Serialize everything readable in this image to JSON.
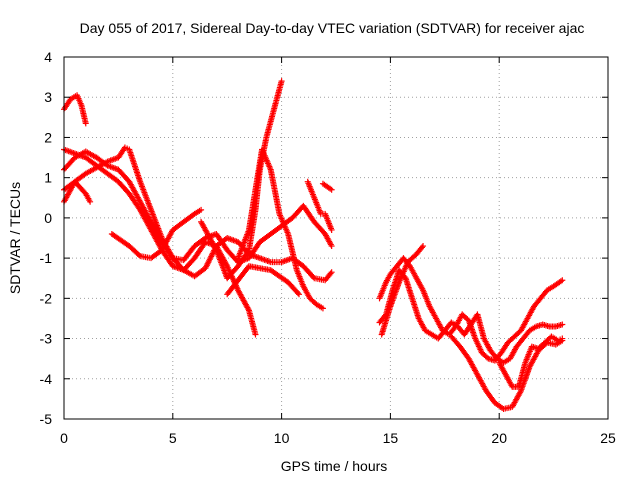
{
  "chart_data": {
    "type": "scatter",
    "title": "Day 055 of 2017, Sidereal Day-to-day VTEC variation (SDTVAR) for receiver ajac",
    "xlabel": "GPS time / hours",
    "ylabel": "SDTVAR / TECUs",
    "xlim": [
      0,
      25
    ],
    "ylim": [
      -5,
      4
    ],
    "xticks": [
      0,
      5,
      10,
      15,
      20,
      25
    ],
    "yticks": [
      -5,
      -4,
      -3,
      -2,
      -1,
      0,
      1,
      2,
      3,
      4
    ],
    "xtick_labels": [
      "0",
      "5",
      "10",
      "15",
      "20",
      "25"
    ],
    "ytick_labels": [
      "-5",
      "-4",
      "-3",
      "-2",
      "-1",
      "0",
      "1",
      "2",
      "3",
      "4"
    ],
    "grid": true,
    "marker": "+",
    "color": "#ff0000",
    "series": [
      {
        "name": "s1",
        "x": [
          0,
          0.3,
          0.6,
          0.8,
          1.0
        ],
        "y": [
          2.7,
          2.95,
          3.05,
          2.8,
          2.35
        ]
      },
      {
        "name": "s2",
        "x": [
          0,
          0.5,
          1.0,
          1.5,
          2.0,
          2.5,
          3.0,
          3.5,
          4.0,
          4.5,
          5.0,
          5.5,
          6.0,
          6.5,
          7.0,
          7.5,
          8.0,
          8.5,
          8.8
        ],
        "y": [
          1.7,
          1.6,
          1.5,
          1.3,
          1.1,
          0.9,
          0.6,
          0.2,
          -0.3,
          -0.8,
          -1.2,
          -1.3,
          -1.0,
          -0.6,
          -0.7,
          -1.2,
          -1.8,
          -2.3,
          -2.9
        ]
      },
      {
        "name": "s3",
        "x": [
          0,
          0.5,
          1.0,
          1.5,
          2.0,
          2.5,
          3.0,
          3.5,
          4.0,
          4.5,
          5.0,
          5.5,
          6.0,
          6.5,
          7.0,
          7.5,
          8.0,
          8.5,
          9.0,
          9.5,
          10.0,
          10.5,
          11.0,
          11.5,
          12.0,
          12.3
        ],
        "y": [
          1.2,
          1.5,
          1.65,
          1.5,
          1.3,
          1.2,
          0.9,
          0.4,
          -0.1,
          -0.6,
          -1.0,
          -1.3,
          -1.45,
          -1.25,
          -0.7,
          -0.5,
          -0.6,
          -0.9,
          -1.0,
          -1.1,
          -1.1,
          -1.0,
          -1.2,
          -1.5,
          -1.55,
          -1.35
        ]
      },
      {
        "name": "s4",
        "x": [
          0,
          0.5,
          1.0,
          1.5,
          2.0,
          2.5,
          2.8,
          3.0,
          3.5,
          4.0,
          4.5,
          5.0,
          5.5,
          6.0,
          6.5,
          7.0,
          7.5,
          8.0,
          8.5,
          9.0,
          9.5,
          10.0,
          10.5,
          11.0,
          11.5,
          12.0,
          12.3
        ],
        "y": [
          0.7,
          0.9,
          1.1,
          1.25,
          1.4,
          1.5,
          1.75,
          1.7,
          0.9,
          0.2,
          -0.5,
          -1.0,
          -1.05,
          -0.7,
          -0.5,
          -0.4,
          -0.8,
          -1.1,
          -1.0,
          -0.6,
          -0.4,
          -0.2,
          0.0,
          0.3,
          -0.1,
          -0.4,
          -0.7
        ]
      },
      {
        "name": "s5",
        "x": [
          0,
          0.5,
          1.0,
          1.2
        ],
        "y": [
          0.4,
          0.9,
          0.6,
          0.4
        ]
      },
      {
        "name": "s6",
        "x": [
          2.2,
          3.0,
          3.5,
          4.0,
          4.5,
          5.0,
          5.5,
          6.0,
          6.3
        ],
        "y": [
          -0.4,
          -0.7,
          -0.95,
          -1.0,
          -0.8,
          -0.3,
          -0.1,
          0.1,
          0.2
        ]
      },
      {
        "name": "s7",
        "x": [
          6.3,
          7.0,
          7.5,
          8.0,
          8.5,
          8.8,
          9.0,
          9.3,
          9.6,
          10.0
        ],
        "y": [
          -0.1,
          -0.8,
          -1.5,
          -1.2,
          -0.8,
          0.2,
          1.2,
          2.0,
          2.6,
          3.4
        ]
      },
      {
        "name": "s8",
        "x": [
          8.0,
          8.5,
          8.8,
          9.1,
          9.5,
          9.9,
          10.3,
          10.7,
          11.0,
          11.3,
          11.6,
          11.9
        ],
        "y": [
          -1.0,
          -0.3,
          0.7,
          1.7,
          1.2,
          0.1,
          -0.4,
          -1.3,
          -1.7,
          -2.0,
          -2.15,
          -2.25
        ]
      },
      {
        "name": "s9",
        "x": [
          7.5,
          8.5,
          9.5,
          10.3,
          10.8
        ],
        "y": [
          -1.9,
          -1.2,
          -1.3,
          -1.6,
          -1.9
        ]
      },
      {
        "name": "s10",
        "x": [
          11.2,
          11.5,
          11.8,
          12.0,
          12.3
        ],
        "y": [
          0.9,
          0.5,
          0.1,
          0.1,
          -0.3
        ]
      },
      {
        "name": "s11",
        "x": [
          11.9,
          12.3
        ],
        "y": [
          0.85,
          0.7
        ]
      },
      {
        "name": "s12",
        "x": [
          14.5,
          14.8,
          15.0,
          15.3,
          15.6,
          15.9,
          16.2,
          16.5,
          16.8,
          17.1,
          17.4,
          17.7,
          18.0,
          18.3,
          18.6,
          18.9,
          19.2,
          19.5,
          19.8,
          20.1,
          20.4,
          20.7,
          21.0,
          21.3,
          21.6,
          21.9,
          22.2,
          22.5,
          22.9
        ],
        "y": [
          -2.0,
          -1.6,
          -1.4,
          -1.2,
          -1.0,
          -1.2,
          -1.5,
          -1.8,
          -2.2,
          -2.5,
          -2.8,
          -2.9,
          -2.7,
          -2.4,
          -2.55,
          -3.0,
          -3.35,
          -3.5,
          -3.55,
          -3.35,
          -3.1,
          -2.95,
          -2.8,
          -2.5,
          -2.2,
          -2.0,
          -1.8,
          -1.7,
          -1.55
        ]
      },
      {
        "name": "s13",
        "x": [
          14.5,
          14.8,
          15.1,
          15.4,
          15.7,
          16.0,
          16.3,
          16.6,
          16.9,
          17.2,
          17.5,
          17.8,
          18.1,
          18.4,
          18.7,
          19.0,
          19.3,
          19.6,
          19.9,
          20.2,
          20.5,
          20.8,
          21.1,
          21.4,
          21.7,
          22.0,
          22.3,
          22.6,
          22.9
        ],
        "y": [
          -2.6,
          -2.4,
          -1.8,
          -1.3,
          -1.5,
          -2.0,
          -2.5,
          -2.8,
          -2.9,
          -3.0,
          -2.8,
          -2.6,
          -2.7,
          -2.9,
          -2.65,
          -2.4,
          -3.0,
          -3.3,
          -3.5,
          -3.6,
          -3.5,
          -3.2,
          -3.0,
          -2.8,
          -2.7,
          -2.65,
          -2.7,
          -2.7,
          -2.65
        ]
      },
      {
        "name": "s14",
        "x": [
          17.8,
          18.2,
          18.6,
          19.0,
          19.4,
          19.8,
          20.2,
          20.6,
          21.0,
          21.4,
          21.8,
          22.2,
          22.6,
          22.9
        ],
        "y": [
          -2.95,
          -3.2,
          -3.5,
          -3.9,
          -4.3,
          -4.6,
          -4.75,
          -4.7,
          -4.3,
          -3.7,
          -3.3,
          -3.1,
          -3.15,
          -3.05
        ]
      },
      {
        "name": "s15",
        "x": [
          20.0,
          20.3,
          20.6,
          20.9,
          21.2,
          21.5,
          21.8,
          22.1,
          22.4,
          22.7,
          22.9
        ],
        "y": [
          -3.6,
          -3.9,
          -4.2,
          -4.2,
          -3.6,
          -3.2,
          -3.25,
          -3.1,
          -2.95,
          -3.05,
          -3.0
        ]
      },
      {
        "name": "s16",
        "x": [
          14.6,
          15.0,
          15.4,
          15.8,
          16.2,
          16.5
        ],
        "y": [
          -2.9,
          -2.2,
          -1.6,
          -1.1,
          -0.9,
          -0.7
        ]
      }
    ]
  }
}
